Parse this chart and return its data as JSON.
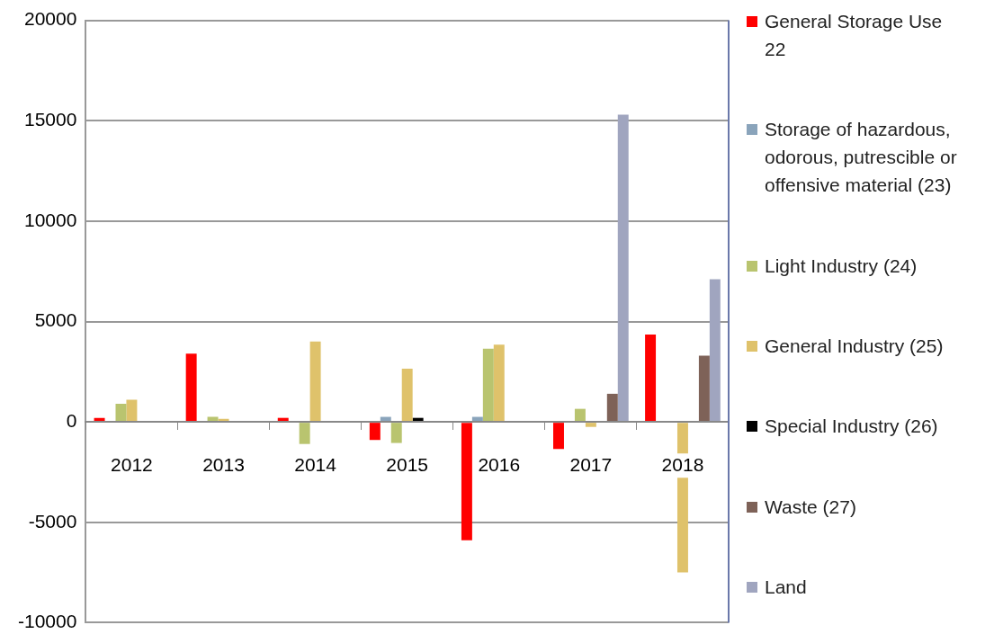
{
  "chart_data": {
    "type": "bar",
    "categories": [
      "2012",
      "2013",
      "2014",
      "2015",
      "2016",
      "2017",
      "2018"
    ],
    "series": [
      {
        "name": "General Storage Use 22",
        "color": "#ff0000",
        "values": [
          200,
          3400,
          200,
          -900,
          -5900,
          -1350,
          4350
        ]
      },
      {
        "name": "Storage of hazardous, odorous, putrescible or offensive material (23)",
        "color": "#8aa4bb",
        "values": [
          null,
          null,
          null,
          250,
          250,
          null,
          null
        ]
      },
      {
        "name": "Light Industry (24)",
        "color": "#b9c46f",
        "values": [
          900,
          250,
          -1100,
          -1050,
          3650,
          650,
          50
        ]
      },
      {
        "name": "General Industry (25)",
        "color": "#dfc26b",
        "values": [
          1100,
          150,
          4000,
          2650,
          3850,
          -250,
          -7500
        ]
      },
      {
        "name": "Special Industry (26)",
        "color": "#000000",
        "values": [
          null,
          null,
          null,
          200,
          null,
          null,
          null
        ]
      },
      {
        "name": "Waste (27)",
        "color": "#7e6258",
        "values": [
          null,
          null,
          null,
          null,
          null,
          1400,
          3300
        ]
      },
      {
        "name": "Land",
        "color": "#a0a5bf",
        "values": [
          null,
          null,
          null,
          null,
          null,
          15300,
          7100
        ]
      }
    ],
    "ylim": [
      -10000,
      20000
    ],
    "yticks": [
      -10000,
      -5000,
      0,
      5000,
      10000,
      15000,
      20000
    ],
    "grid": "y",
    "legend": "right"
  }
}
